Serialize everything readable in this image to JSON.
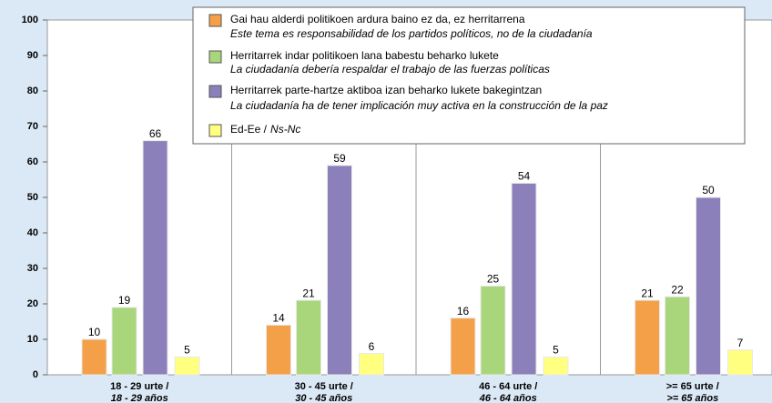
{
  "chart_data": {
    "type": "bar",
    "categories": [
      "18 - 29 urte /",
      "30 - 45 urte /",
      "46 - 64 urte /",
      ">= 65 urte /"
    ],
    "categories_es": [
      "18 - 29 años",
      "30 - 45 años",
      "46 - 64 años",
      ">= 65 años"
    ],
    "series": [
      {
        "name": "Gai hau alderdi politikoen ardura baino ez da, ez herritarrena",
        "name_es": "Este tema es responsabilidad de los partidos políticos, no de la ciudadanía",
        "color": "#f4a049",
        "values": [
          10,
          14,
          16,
          21
        ]
      },
      {
        "name": "Herritarrek indar politikoen lana babestu beharko lukete",
        "name_es": "La ciudadanía debería respaldar el trabajo de las fuerzas políticas",
        "color": "#a9d67b",
        "values": [
          19,
          21,
          25,
          22
        ]
      },
      {
        "name": "Herritarrek parte-hartze aktiboa izan beharko lukete bakegintzan",
        "name_es": "La ciudadanía ha de tener implicación muy activa en la construcción de la paz",
        "color": "#8c80ba",
        "values": [
          66,
          59,
          54,
          50
        ]
      },
      {
        "name": "Ed-Ee /",
        "name_es": "Ns-Nc",
        "color": "#ffff80",
        "values": [
          5,
          6,
          5,
          7
        ]
      }
    ],
    "ylim": [
      0,
      100
    ],
    "yticks": [
      0,
      10,
      20,
      30,
      40,
      50,
      60,
      70,
      80,
      90,
      100
    ],
    "grid": false
  }
}
